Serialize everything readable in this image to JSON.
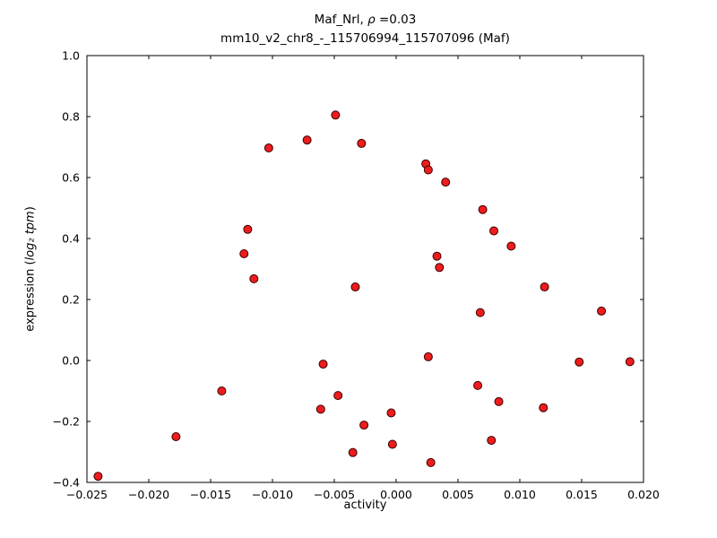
{
  "title": {
    "line1_pre": "Maf_Nrl, ",
    "line1_rho": "ρ",
    "line1_post": " =0.03",
    "line2": "mm10_v2_chr8_-_115706994_115707096 (Maf)"
  },
  "axes": {
    "xlabel": "activity",
    "ylabel_pre": "expression (",
    "ylabel_math": "log₂ tpm",
    "ylabel_post": ")"
  },
  "chart_data": {
    "type": "scatter",
    "title": "Maf_Nrl, ρ =0.03\nmm10_v2_chr8_-_115706994_115707096 (Maf)",
    "xlabel": "activity",
    "ylabel": "expression (log2 tpm)",
    "xlim": [
      -0.025,
      0.02
    ],
    "ylim": [
      -0.4,
      1.0
    ],
    "grid": false,
    "marker_color": "#ee1c1c",
    "marker_edge_color": "#3a0000",
    "xticks": [
      -0.025,
      -0.02,
      -0.015,
      -0.01,
      -0.005,
      0.0,
      0.005,
      0.01,
      0.015,
      0.02
    ],
    "xtick_labels": [
      "−0.025",
      "−0.020",
      "−0.015",
      "−0.010",
      "−0.005",
      "0.000",
      "0.005",
      "0.010",
      "0.015",
      "0.020"
    ],
    "yticks": [
      -0.4,
      -0.2,
      0.0,
      0.2,
      0.4,
      0.6,
      0.8,
      1.0
    ],
    "ytick_labels": [
      "−0.4",
      "−0.2",
      "0.0",
      "0.2",
      "0.4",
      "0.6",
      "0.8",
      "1.0"
    ],
    "points": [
      [
        -0.0241,
        -0.38
      ],
      [
        -0.0178,
        -0.25
      ],
      [
        -0.0141,
        -0.1
      ],
      [
        -0.0123,
        0.35
      ],
      [
        -0.012,
        0.43
      ],
      [
        -0.0115,
        0.268
      ],
      [
        -0.0103,
        0.697
      ],
      [
        -0.0072,
        0.723
      ],
      [
        -0.0061,
        -0.16
      ],
      [
        -0.0059,
        -0.012
      ],
      [
        -0.0049,
        0.805
      ],
      [
        -0.0047,
        -0.115
      ],
      [
        -0.0035,
        -0.302
      ],
      [
        -0.0033,
        0.241
      ],
      [
        -0.0028,
        0.712
      ],
      [
        -0.0026,
        -0.212
      ],
      [
        -0.0004,
        -0.172
      ],
      [
        -0.0003,
        -0.275
      ],
      [
        0.0024,
        0.645
      ],
      [
        0.0026,
        0.625
      ],
      [
        0.0026,
        0.012
      ],
      [
        0.0028,
        -0.335
      ],
      [
        0.0033,
        0.342
      ],
      [
        0.0035,
        0.305
      ],
      [
        0.004,
        0.585
      ],
      [
        0.0066,
        -0.082
      ],
      [
        0.0068,
        0.157
      ],
      [
        0.007,
        0.495
      ],
      [
        0.0077,
        -0.262
      ],
      [
        0.0079,
        0.425
      ],
      [
        0.0083,
        -0.135
      ],
      [
        0.0093,
        0.375
      ],
      [
        0.0119,
        -0.155
      ],
      [
        0.012,
        0.241
      ],
      [
        0.0148,
        -0.005
      ],
      [
        0.0166,
        0.162
      ],
      [
        0.0189,
        -0.004
      ]
    ]
  }
}
